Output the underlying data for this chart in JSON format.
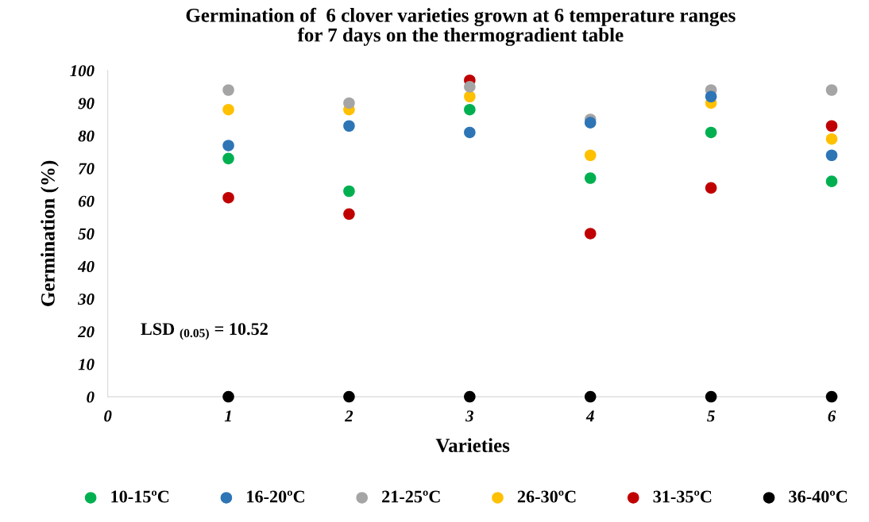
{
  "chart_data": {
    "type": "scatter",
    "title": "Germination of  6 clover varieties grown at 6 temperature ranges\nfor 7 days on the thermogradient table",
    "xlabel": "Varieties",
    "ylabel": "Germination (%)",
    "x": [
      1,
      2,
      3,
      4,
      5,
      6
    ],
    "series": [
      {
        "name": "10-15ºC",
        "color": "#00b050",
        "values": [
          73,
          63,
          88,
          67,
          81,
          66
        ]
      },
      {
        "name": "16-20ºC",
        "color": "#2e75b6",
        "values": [
          77,
          83,
          81,
          84,
          92,
          74
        ]
      },
      {
        "name": "21-25ºC",
        "color": "#a5a5a5",
        "values": [
          94,
          90,
          95,
          85,
          94,
          94
        ]
      },
      {
        "name": "26-30ºC",
        "color": "#ffc000",
        "values": [
          88,
          88,
          92,
          74,
          90,
          79
        ]
      },
      {
        "name": "31-35ºC",
        "color": "#c00000",
        "values": [
          61,
          56,
          97,
          50,
          64,
          83
        ]
      },
      {
        "name": "36-40ºC",
        "color": "#000000",
        "values": [
          0,
          0,
          0,
          0,
          0,
          0
        ]
      }
    ],
    "xlim": [
      0,
      6.05
    ],
    "xticks": [
      0,
      1,
      2,
      3,
      4,
      5,
      6
    ],
    "ylim": [
      0,
      100
    ],
    "yticks": [
      0,
      10,
      20,
      30,
      40,
      50,
      60,
      70,
      80,
      90,
      100
    ],
    "annotations": [
      "LSD $_{(0.05)}$ = 10.52"
    ],
    "marker": "circle",
    "grid": false,
    "legend": "bottom"
  }
}
